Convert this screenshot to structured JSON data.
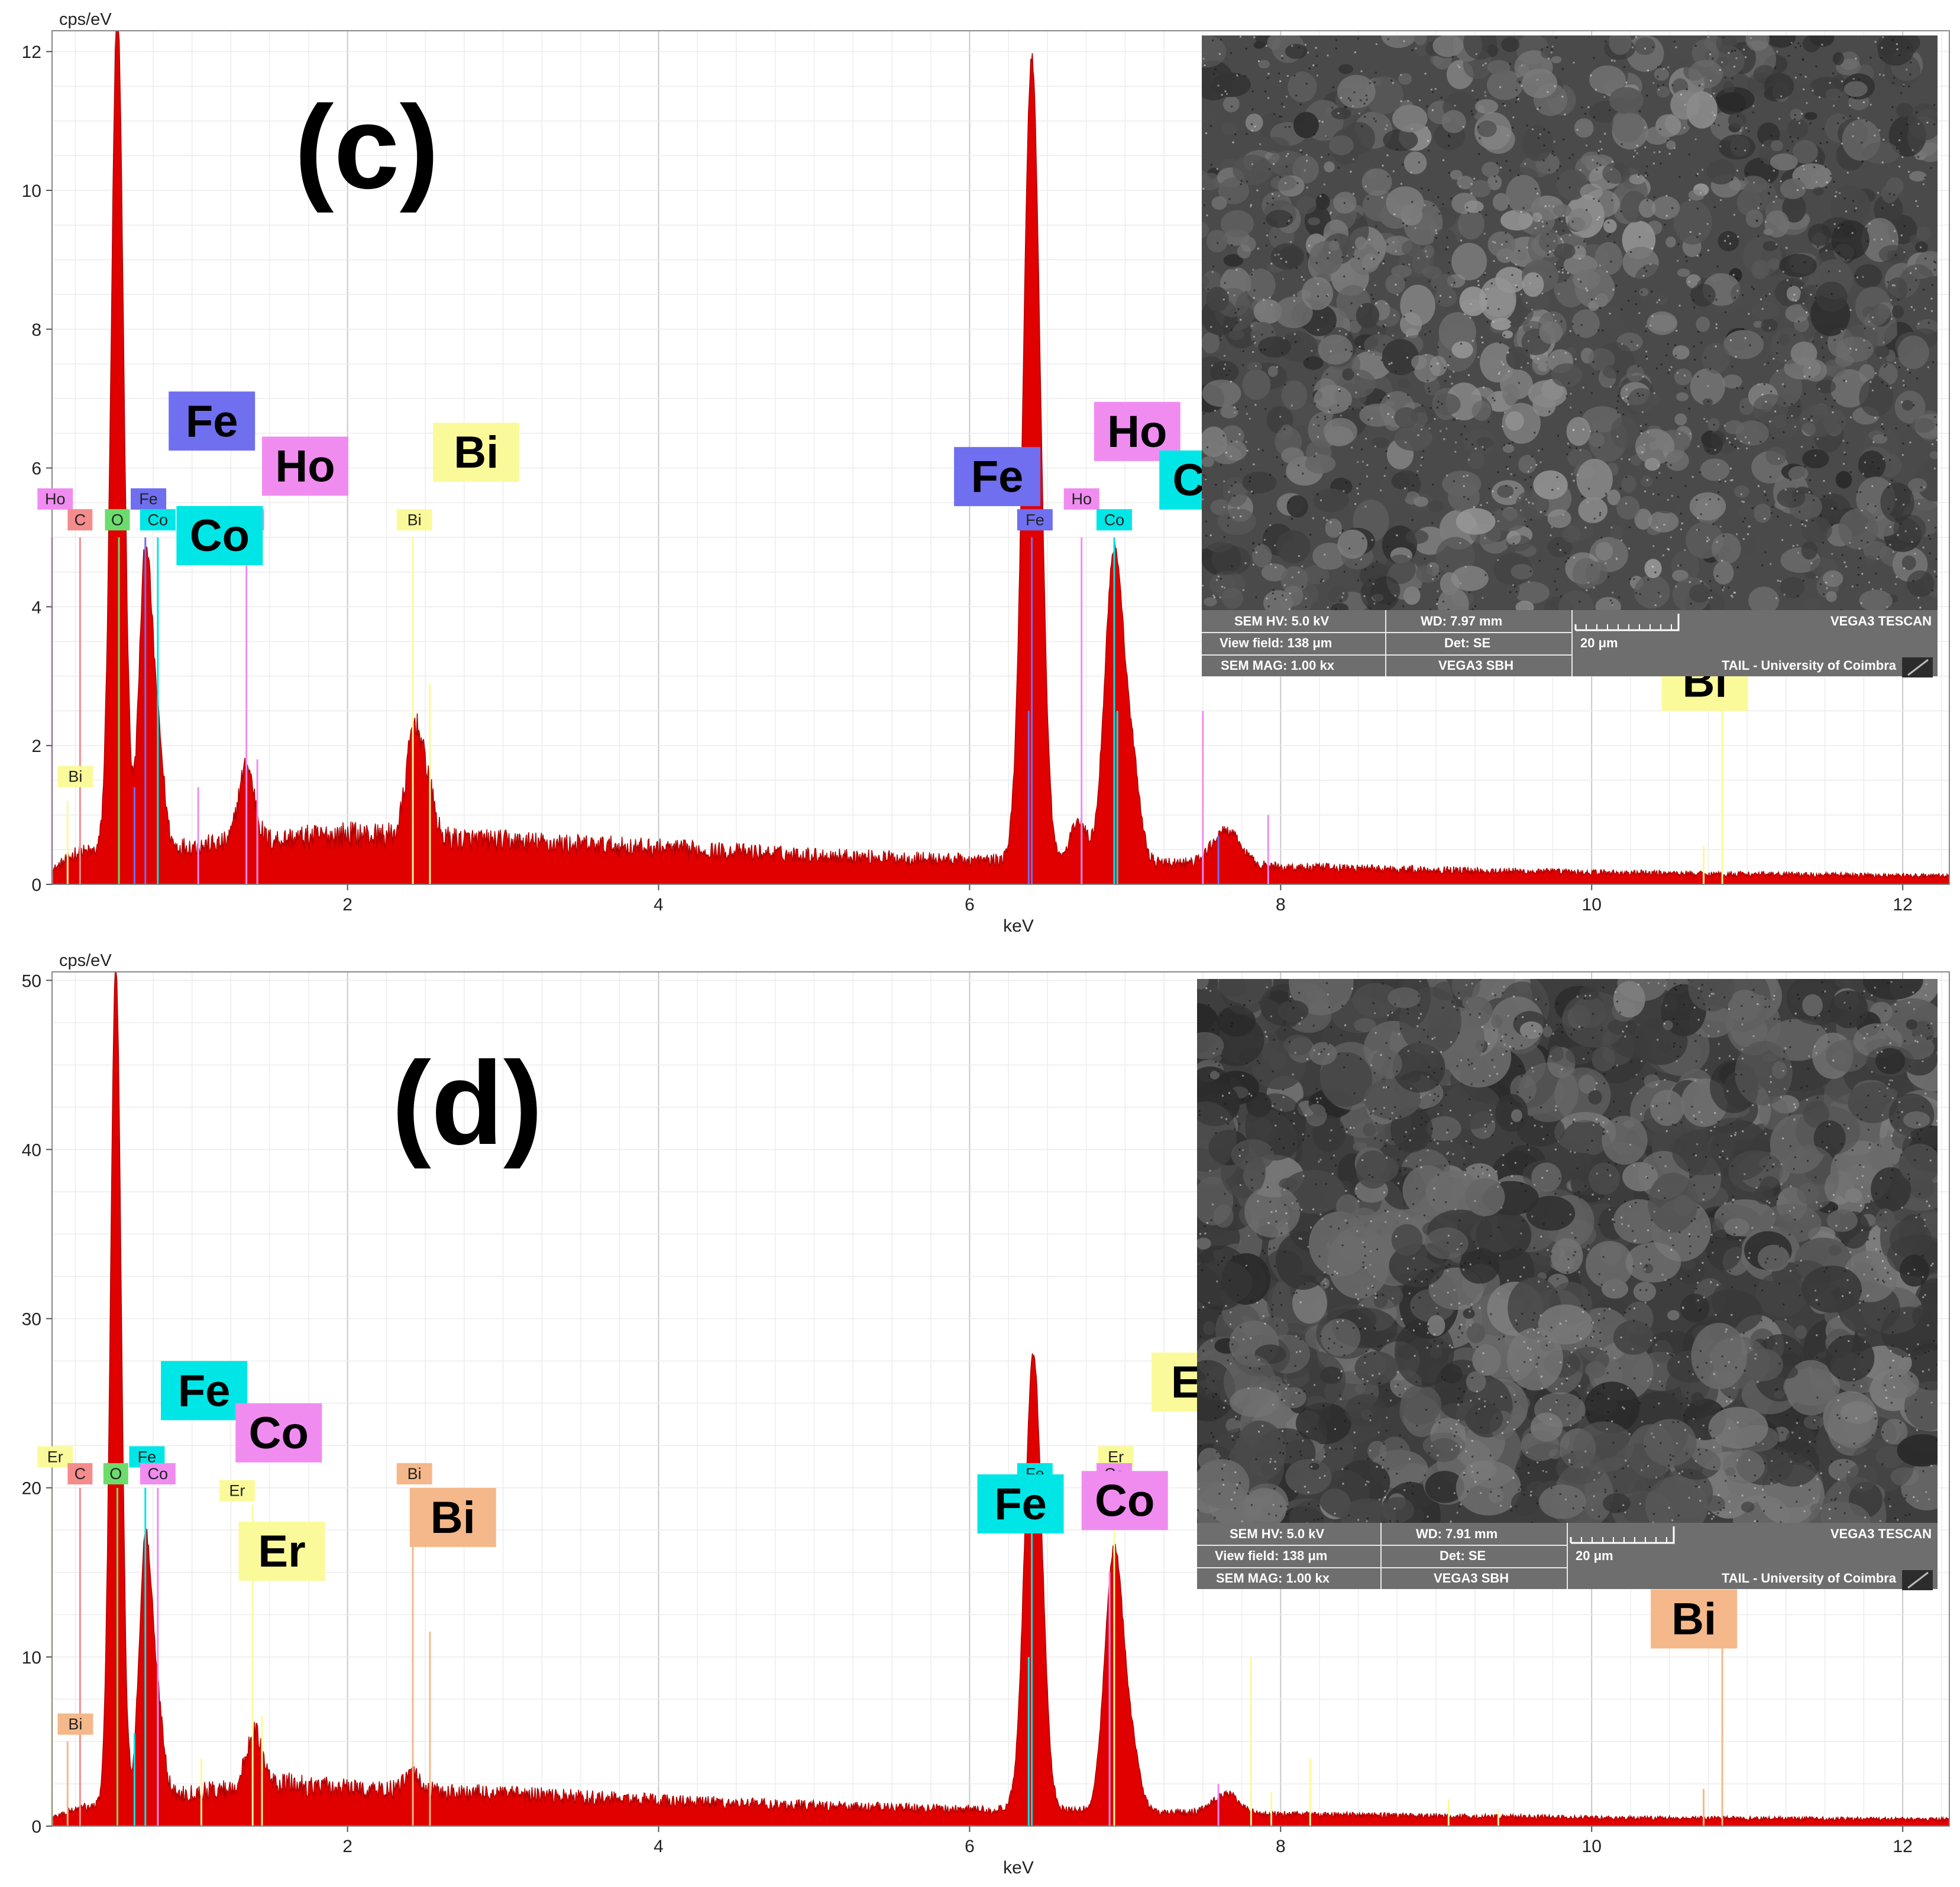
{
  "colors": {
    "spectrum_fill": "#e00000",
    "spectrum_stroke": "#b00000",
    "grid": "#d8d8d8",
    "frame": "#888888",
    "Fe_c": "#6f6ff0",
    "Fe_d": "#00e6e6",
    "Ho": "#f08cf0",
    "Co_c": "#00e6e6",
    "Co_d": "#f08cf0",
    "Bi_c": "#fafa9a",
    "Bi_d": "#f5b88a",
    "Er": "#fafa9a",
    "C": "#f58c8c",
    "O": "#6cdc6c"
  },
  "chart_data": [
    {
      "type": "area",
      "panel_label": "(c)",
      "ylabel": "cps/eV",
      "xlabel": "keV",
      "xlim": [
        0.1,
        12.3
      ],
      "ylim": [
        0,
        12.3
      ],
      "x_ticks": [
        2,
        4,
        6,
        8,
        10,
        12
      ],
      "y_ticks": [
        0,
        2,
        4,
        6,
        8,
        10,
        12
      ],
      "grid": true,
      "background_level": [
        [
          0.1,
          0.2
        ],
        [
          0.25,
          0.45
        ],
        [
          1.0,
          0.55
        ],
        [
          2.0,
          0.72
        ],
        [
          3.0,
          0.62
        ],
        [
          4.0,
          0.52
        ],
        [
          5.0,
          0.42
        ],
        [
          6.0,
          0.35
        ],
        [
          7.4,
          0.3
        ],
        [
          8.0,
          0.25
        ],
        [
          10.0,
          0.17
        ],
        [
          12.3,
          0.12
        ]
      ],
      "peaks": [
        {
          "center": 0.52,
          "height": 12.1,
          "width": 0.04
        },
        {
          "center": 0.7,
          "height": 4.2,
          "width": 0.04
        },
        {
          "center": 0.78,
          "height": 1.5,
          "width": 0.04
        },
        {
          "center": 1.35,
          "height": 1.1,
          "width": 0.05
        },
        {
          "center": 2.43,
          "height": 1.6,
          "width": 0.05
        },
        {
          "center": 2.52,
          "height": 0.6,
          "width": 0.04
        },
        {
          "center": 6.4,
          "height": 11.6,
          "width": 0.055
        },
        {
          "center": 6.7,
          "height": 0.6,
          "width": 0.05
        },
        {
          "center": 6.93,
          "height": 4.5,
          "width": 0.06
        },
        {
          "center": 7.05,
          "height": 1.2,
          "width": 0.05
        },
        {
          "center": 7.65,
          "height": 0.5,
          "width": 0.09
        }
      ],
      "marker_lines": [
        {
          "x": 0.1,
          "y": 5.0,
          "color": "#f08cf0"
        },
        {
          "x": 0.28,
          "y": 5.0,
          "color": "#f58c8c"
        },
        {
          "x": 0.53,
          "y": 5.0,
          "color": "#6cdc6c"
        },
        {
          "x": 0.7,
          "y": 5.0,
          "color": "#6f6ff0"
        },
        {
          "x": 0.78,
          "y": 5.0,
          "color": "#00e6e6"
        },
        {
          "x": 0.63,
          "y": 1.4,
          "color": "#6f6ff0"
        },
        {
          "x": 1.04,
          "y": 1.4,
          "color": "#f08cf0"
        },
        {
          "x": 1.35,
          "y": 5.0,
          "color": "#f08cf0"
        },
        {
          "x": 1.42,
          "y": 1.8,
          "color": "#f08cf0"
        },
        {
          "x": 0.2,
          "y": 1.2,
          "color": "#fafa9a"
        },
        {
          "x": 2.42,
          "y": 5.0,
          "color": "#fafa9a"
        },
        {
          "x": 2.53,
          "y": 2.9,
          "color": "#fafa9a"
        },
        {
          "x": 6.4,
          "y": 5.0,
          "color": "#6f6ff0"
        },
        {
          "x": 6.38,
          "y": 2.5,
          "color": "#6f6ff0"
        },
        {
          "x": 6.72,
          "y": 5.0,
          "color": "#f08cf0"
        },
        {
          "x": 6.93,
          "y": 5.0,
          "color": "#00e6e6"
        },
        {
          "x": 6.95,
          "y": 2.5,
          "color": "#00e6e6"
        },
        {
          "x": 7.5,
          "y": 2.5,
          "color": "#f08cf0"
        },
        {
          "x": 7.92,
          "y": 1.0,
          "color": "#f08cf0"
        },
        {
          "x": 7.6,
          "y": 0.7,
          "color": "#6f6ff0"
        },
        {
          "x": 10.72,
          "y": 0.55,
          "color": "#fafa9a"
        },
        {
          "x": 10.84,
          "y": 3.0,
          "color": "#fafa9a"
        }
      ],
      "small_labels": [
        {
          "text": "Ho",
          "x": 0.12,
          "y": 5.4,
          "color": "#f08cf0"
        },
        {
          "text": "C",
          "x": 0.28,
          "y": 5.1,
          "color": "#f58c8c"
        },
        {
          "text": "O",
          "x": 0.52,
          "y": 5.1,
          "color": "#6cdc6c"
        },
        {
          "text": "Fe",
          "x": 0.72,
          "y": 5.4,
          "color": "#6f6ff0"
        },
        {
          "text": "Co",
          "x": 0.78,
          "y": 5.1,
          "color": "#00e6e6"
        },
        {
          "text": "Ho",
          "x": 1.35,
          "y": 5.1,
          "color": "#f08cf0"
        },
        {
          "text": "Bi",
          "x": 2.43,
          "y": 5.1,
          "color": "#fafa9a"
        },
        {
          "text": "Bi",
          "x": 0.25,
          "y": 1.4,
          "color": "#fafa9a"
        },
        {
          "text": "Fe",
          "x": 6.42,
          "y": 5.1,
          "color": "#6f6ff0"
        },
        {
          "text": "Ho",
          "x": 6.72,
          "y": 5.4,
          "color": "#f08cf0"
        },
        {
          "text": "Co",
          "x": 6.93,
          "y": 5.1,
          "color": "#00e6e6"
        }
      ],
      "big_labels": [
        {
          "text": "Fe",
          "x": 0.85,
          "y": 6.25,
          "color": "#6f6ff0"
        },
        {
          "text": "Ho",
          "x": 1.45,
          "y": 5.6,
          "color": "#f08cf0"
        },
        {
          "text": "Co",
          "x": 0.9,
          "y": 4.6,
          "color": "#00e6e6"
        },
        {
          "text": "Bi",
          "x": 2.55,
          "y": 5.8,
          "color": "#fafa9a"
        },
        {
          "text": "Fe",
          "x": 5.9,
          "y": 5.45,
          "color": "#6f6ff0"
        },
        {
          "text": "Ho",
          "x": 6.8,
          "y": 6.1,
          "color": "#f08cf0"
        },
        {
          "text": "Co",
          "x": 7.22,
          "y": 5.4,
          "color": "#00e6e6"
        },
        {
          "text": "Bi",
          "x": 10.45,
          "y": 2.5,
          "color": "#fafa9a"
        }
      ],
      "sem_info": {
        "hv": "SEM HV: 5.0 kV",
        "wd": "WD: 7.97 mm",
        "brand": "VEGA3 TESCAN",
        "view_field": "View field: 138 μm",
        "det": "Det: SE",
        "scale": "20 μm",
        "mag": "SEM MAG: 1.00 kx",
        "model": "VEGA3 SBH",
        "lab": "TAIL - University of Coimbra"
      }
    },
    {
      "type": "area",
      "panel_label": "(d)",
      "ylabel": "cps/eV",
      "xlabel": "keV",
      "xlim": [
        0.1,
        12.3
      ],
      "ylim": [
        0,
        50.5
      ],
      "x_ticks": [
        2,
        4,
        6,
        8,
        10,
        12
      ],
      "y_ticks": [
        0,
        10,
        20,
        30,
        40,
        50
      ],
      "grid": true,
      "background_level": [
        [
          0.1,
          0.5
        ],
        [
          0.25,
          1.0
        ],
        [
          1.0,
          2.0
        ],
        [
          1.6,
          2.5
        ],
        [
          2.0,
          2.2
        ],
        [
          3.0,
          1.9
        ],
        [
          4.0,
          1.5
        ],
        [
          5.0,
          1.2
        ],
        [
          6.0,
          1.0
        ],
        [
          7.4,
          0.8
        ],
        [
          8.0,
          0.7
        ],
        [
          10.0,
          0.5
        ],
        [
          12.3,
          0.4
        ]
      ],
      "peaks": [
        {
          "center": 0.51,
          "height": 49.5,
          "width": 0.035
        },
        {
          "center": 0.7,
          "height": 15.0,
          "width": 0.04
        },
        {
          "center": 0.78,
          "height": 5.0,
          "width": 0.04
        },
        {
          "center": 1.4,
          "height": 3.3,
          "width": 0.05
        },
        {
          "center": 2.42,
          "height": 1.0,
          "width": 0.05
        },
        {
          "center": 6.41,
          "height": 27.0,
          "width": 0.055
        },
        {
          "center": 6.93,
          "height": 15.5,
          "width": 0.06
        },
        {
          "center": 7.05,
          "height": 3.0,
          "width": 0.05
        },
        {
          "center": 7.65,
          "height": 1.2,
          "width": 0.08
        }
      ],
      "marker_lines": [
        {
          "x": 0.1,
          "y": 20.0,
          "color": "#fafa9a"
        },
        {
          "x": 0.28,
          "y": 20.0,
          "color": "#f58c8c"
        },
        {
          "x": 0.52,
          "y": 20.0,
          "color": "#6cdc6c"
        },
        {
          "x": 0.7,
          "y": 20.0,
          "color": "#00e6e6"
        },
        {
          "x": 0.78,
          "y": 20.0,
          "color": "#f08cf0"
        },
        {
          "x": 0.63,
          "y": 5.5,
          "color": "#00e6e6"
        },
        {
          "x": 1.06,
          "y": 4.0,
          "color": "#fafa9a"
        },
        {
          "x": 1.39,
          "y": 19.0,
          "color": "#fafa9a"
        },
        {
          "x": 1.45,
          "y": 6.5,
          "color": "#fafa9a"
        },
        {
          "x": 0.2,
          "y": 5.0,
          "color": "#f5b88a"
        },
        {
          "x": 2.42,
          "y": 20.0,
          "color": "#f5b88a"
        },
        {
          "x": 2.53,
          "y": 11.5,
          "color": "#f5b88a"
        },
        {
          "x": 6.4,
          "y": 20.0,
          "color": "#00e6e6"
        },
        {
          "x": 6.38,
          "y": 10.0,
          "color": "#00e6e6"
        },
        {
          "x": 6.93,
          "y": 20.0,
          "color": "#fafa9a"
        },
        {
          "x": 6.9,
          "y": 15.0,
          "color": "#f08cf0"
        },
        {
          "x": 7.6,
          "y": 2.5,
          "color": "#f08cf0"
        },
        {
          "x": 7.81,
          "y": 10.0,
          "color": "#fafa9a"
        },
        {
          "x": 7.94,
          "y": 2.0,
          "color": "#fafa9a"
        },
        {
          "x": 8.19,
          "y": 4.0,
          "color": "#fafa9a"
        },
        {
          "x": 9.08,
          "y": 1.6,
          "color": "#fafa9a"
        },
        {
          "x": 9.4,
          "y": 1.0,
          "color": "#fafa9a"
        },
        {
          "x": 10.72,
          "y": 2.2,
          "color": "#f5b88a"
        },
        {
          "x": 10.84,
          "y": 13.5,
          "color": "#f5b88a"
        }
      ],
      "small_labels": [
        {
          "text": "Er",
          "x": 0.12,
          "y": 21.2,
          "color": "#fafa9a"
        },
        {
          "text": "C",
          "x": 0.28,
          "y": 20.2,
          "color": "#f58c8c"
        },
        {
          "text": "O",
          "x": 0.51,
          "y": 20.2,
          "color": "#6cdc6c"
        },
        {
          "text": "Fe",
          "x": 0.71,
          "y": 21.2,
          "color": "#00e6e6"
        },
        {
          "text": "Co",
          "x": 0.78,
          "y": 20.2,
          "color": "#f08cf0"
        },
        {
          "text": "Er",
          "x": 1.29,
          "y": 19.2,
          "color": "#fafa9a"
        },
        {
          "text": "Bi",
          "x": 2.43,
          "y": 20.2,
          "color": "#f5b88a"
        },
        {
          "text": "Bi",
          "x": 0.25,
          "y": 5.4,
          "color": "#f5b88a"
        },
        {
          "text": "Fe",
          "x": 6.42,
          "y": 20.2,
          "color": "#00e6e6"
        },
        {
          "text": "Er",
          "x": 6.94,
          "y": 21.2,
          "color": "#fafa9a"
        },
        {
          "text": "Co",
          "x": 6.93,
          "y": 20.2,
          "color": "#f08cf0"
        }
      ],
      "big_labels": [
        {
          "text": "Fe",
          "x": 0.8,
          "y": 24.0,
          "color": "#00e6e6"
        },
        {
          "text": "Co",
          "x": 1.28,
          "y": 21.5,
          "color": "#f08cf0"
        },
        {
          "text": "Er",
          "x": 1.3,
          "y": 14.5,
          "color": "#fafa9a"
        },
        {
          "text": "Bi",
          "x": 2.4,
          "y": 16.5,
          "color": "#f5b88a"
        },
        {
          "text": "Fe",
          "x": 6.05,
          "y": 17.3,
          "color": "#00e6e6"
        },
        {
          "text": "Co",
          "x": 6.72,
          "y": 17.5,
          "color": "#f08cf0"
        },
        {
          "text": "Er",
          "x": 7.17,
          "y": 24.5,
          "color": "#fafa9a"
        },
        {
          "text": "Bi",
          "x": 10.38,
          "y": 10.5,
          "color": "#f5b88a"
        }
      ],
      "sem_info": {
        "hv": "SEM HV: 5.0 kV",
        "wd": "WD: 7.91 mm",
        "brand": "VEGA3 TESCAN",
        "view_field": "View field: 138 μm",
        "det": "Det: SE",
        "scale": "20 μm",
        "mag": "SEM MAG: 1.00 kx",
        "model": "VEGA3 SBH",
        "lab": "TAIL - University of Coimbra"
      }
    }
  ]
}
